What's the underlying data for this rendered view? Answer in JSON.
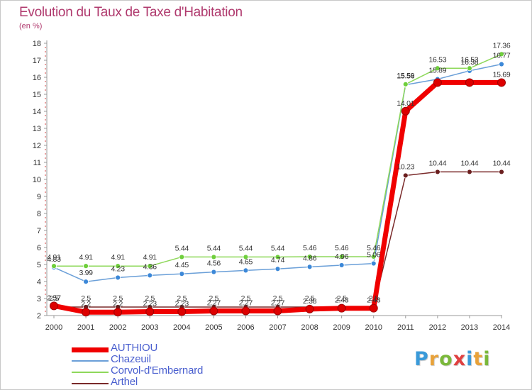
{
  "title": "Evolution du Taux de Taxe d'Habitation",
  "unit_label": "(en %)",
  "logo_text": "Proxiti",
  "logo_colors": [
    "#3a9ad9",
    "#e8a23a",
    "#7ab83a",
    "#e04040",
    "#3a9ad9",
    "#e8a23a",
    "#7ab83a"
  ],
  "chart_data": {
    "type": "line",
    "x": [
      "2000",
      "2001",
      "2002",
      "2003",
      "2004",
      "2005",
      "2006",
      "2007",
      "2008",
      "2009",
      "2010",
      "2011",
      "2012",
      "2013",
      "2014"
    ],
    "ylim": [
      2,
      18
    ],
    "yticks": [
      2,
      3,
      4,
      5,
      6,
      7,
      8,
      9,
      10,
      11,
      12,
      13,
      14,
      15,
      16,
      17,
      18
    ],
    "grid": false,
    "legend_position": "bottom-left",
    "series": [
      {
        "name": "AUTHIOU",
        "color": "#f00000",
        "marker": "#dd0000",
        "width": 7,
        "values": [
          2.57,
          2.2,
          2.2,
          2.23,
          2.23,
          2.27,
          2.27,
          2.27,
          2.38,
          2.43,
          2.43,
          14.01,
          15.69,
          15.69,
          15.69
        ],
        "labels": [
          "2.57",
          "2.2",
          "2.2",
          "2.23",
          "2.23",
          "2.27",
          "2.27",
          "2.27",
          "2.38",
          "2.43",
          "2.43",
          "14.01",
          "",
          "",
          "15.69"
        ]
      },
      {
        "name": "Chazeuil",
        "color": "#6a9fd8",
        "marker": "#3c88d8",
        "width": 1.5,
        "values": [
          4.83,
          3.99,
          4.23,
          4.36,
          4.45,
          4.56,
          4.65,
          4.74,
          4.86,
          4.96,
          5.06,
          15.56,
          15.89,
          16.38,
          16.77
        ],
        "labels": [
          "4.83",
          "3.99",
          "4.23",
          "4.36",
          "4.45",
          "4.56",
          "4.65",
          "4.74",
          "4.86",
          "4.96",
          "5.06",
          "15.56",
          "15.89",
          "16.38",
          "16.77"
        ]
      },
      {
        "name": "Corvol-d'Embernard",
        "color": "#8ed85a",
        "marker": "#6fcf3c",
        "width": 1.5,
        "values": [
          4.91,
          4.91,
          4.91,
          4.91,
          5.44,
          5.44,
          5.44,
          5.44,
          5.46,
          5.46,
          5.46,
          15.59,
          16.53,
          16.53,
          17.36
        ],
        "labels": [
          "4.91",
          "4.91",
          "4.91",
          "4.91",
          "5.44",
          "5.44",
          "5.44",
          "5.44",
          "5.46",
          "5.46",
          "5.46",
          "15.59",
          "16.53",
          "16.53",
          "17.36"
        ]
      },
      {
        "name": "Arthel",
        "color": "#7a2a2a",
        "marker": "#6a1e1e",
        "width": 1.5,
        "values": [
          2.5,
          2.5,
          2.5,
          2.5,
          2.5,
          2.5,
          2.5,
          2.5,
          2.5,
          2.5,
          2.5,
          10.23,
          10.44,
          10.44,
          10.44
        ],
        "labels": [
          "2.5",
          "2.5",
          "2.5",
          "2.5",
          "2.5",
          "2.5",
          "2.5",
          "2.5",
          "2.5",
          "2.5",
          "2.5",
          "10.23",
          "10.44",
          "10.44",
          "10.44"
        ]
      }
    ]
  }
}
